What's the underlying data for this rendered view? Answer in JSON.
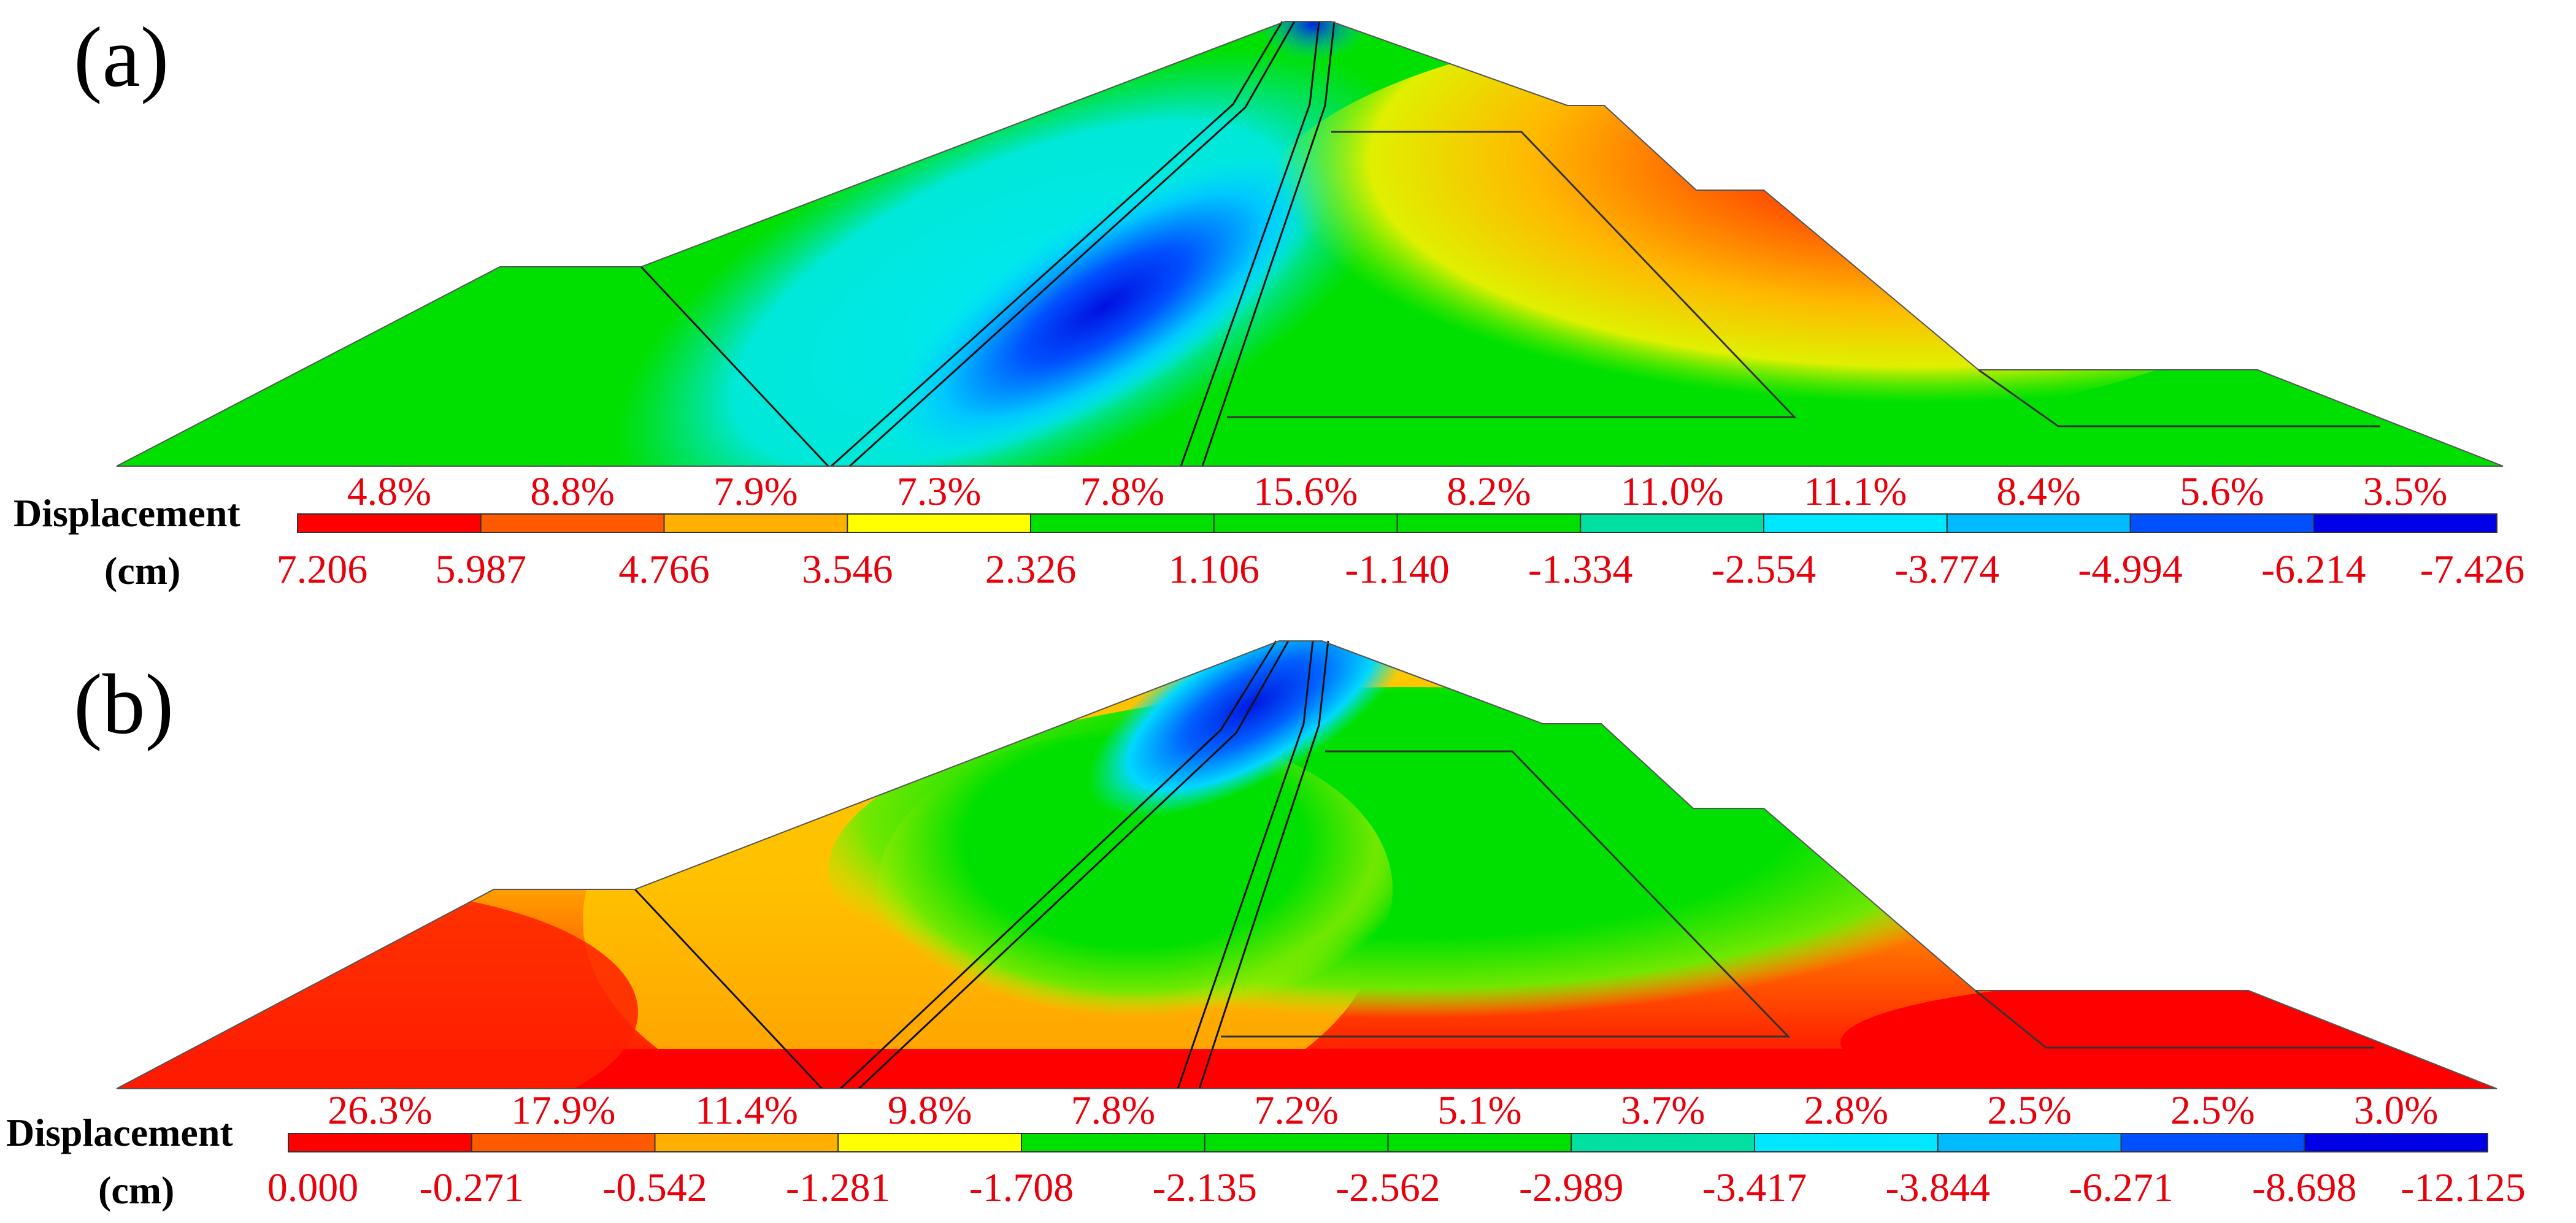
{
  "colors": {
    "scale": [
      "#ff0000",
      "#ff5a00",
      "#ffb000",
      "#ffff00",
      "#00e000",
      "#00e000",
      "#00e000",
      "#00e0a0",
      "#00e8ff",
      "#00bbff",
      "#0050ff",
      "#0000e6"
    ],
    "text": "#e8000b",
    "background": "#ffffff"
  },
  "panels": [
    {
      "label": "(a)",
      "legend_title_line1": "Displacement",
      "legend_title_line2": "(cm)",
      "percentages": [
        "4.8%",
        "8.8%",
        "7.9%",
        "7.3%",
        "7.8%",
        "15.6%",
        "8.2%",
        "11.0%",
        "11.1%",
        "8.4%",
        "5.6%",
        "3.5%"
      ],
      "ticks": [
        "7.206",
        "5.987",
        "4.766",
        "3.546",
        "2.326",
        "1.106",
        "-1.140",
        "-1.334",
        "-2.554",
        "-3.774",
        "-4.994",
        "-6.214",
        "-7.426"
      ]
    },
    {
      "label": "(b)",
      "legend_title_line1": "Displacement",
      "legend_title_line2": "(cm)",
      "percentages": [
        "26.3%",
        "17.9%",
        "11.4%",
        "9.8%",
        "7.8%",
        "7.2%",
        "5.1%",
        "3.7%",
        "2.8%",
        "2.5%",
        "2.5%",
        "3.0%"
      ],
      "ticks": [
        "0.000",
        "-0.271",
        "-0.542",
        "-1.281",
        "-1.708",
        "-2.135",
        "-2.562",
        "-2.989",
        "-3.417",
        "-3.844",
        "-6.271",
        "-8.698",
        "-12.125"
      ]
    }
  ]
}
